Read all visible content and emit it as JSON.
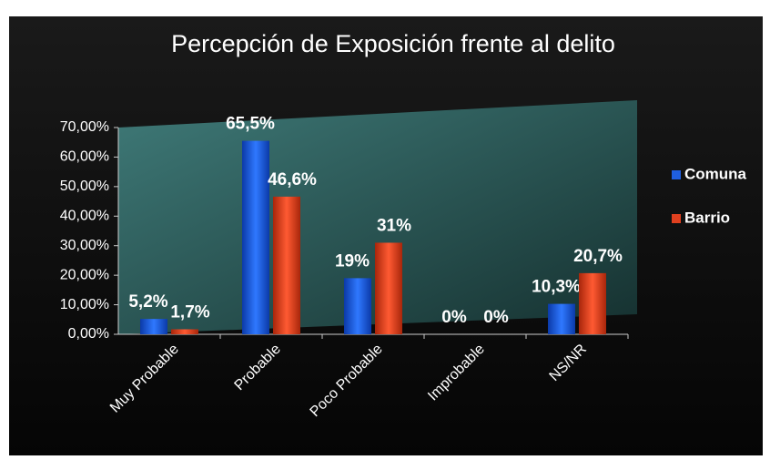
{
  "chart_data": {
    "type": "bar",
    "title": "Percepción de Exposición frente al delito",
    "categories": [
      "Muy Probable",
      "Probable",
      "Poco Probable",
      "Improbable",
      "NS/NR"
    ],
    "series": [
      {
        "name": "Comuna",
        "color": "#1f5fe0",
        "values": [
          5.2,
          65.5,
          19,
          0,
          10.3
        ],
        "value_labels": [
          "5,2%",
          "65,5%",
          "19%",
          "0%",
          "10,3%"
        ]
      },
      {
        "name": "Barrio",
        "color": "#e0401f",
        "values": [
          1.7,
          46.6,
          31,
          0,
          20.7
        ],
        "value_labels": [
          "1,7%",
          "46,6%",
          "31%",
          "0%",
          "20,7%"
        ]
      }
    ],
    "ylim": [
      0,
      70
    ],
    "yticks": [
      {
        "value": 0,
        "label": "0,00%"
      },
      {
        "value": 10,
        "label": "10,00%"
      },
      {
        "value": 20,
        "label": "20,00%"
      },
      {
        "value": 30,
        "label": "30,00%"
      },
      {
        "value": 40,
        "label": "40,00%"
      },
      {
        "value": 50,
        "label": "50,00%"
      },
      {
        "value": 60,
        "label": "60,00%"
      },
      {
        "value": 70,
        "label": "70,00%"
      }
    ],
    "legend": "right"
  }
}
